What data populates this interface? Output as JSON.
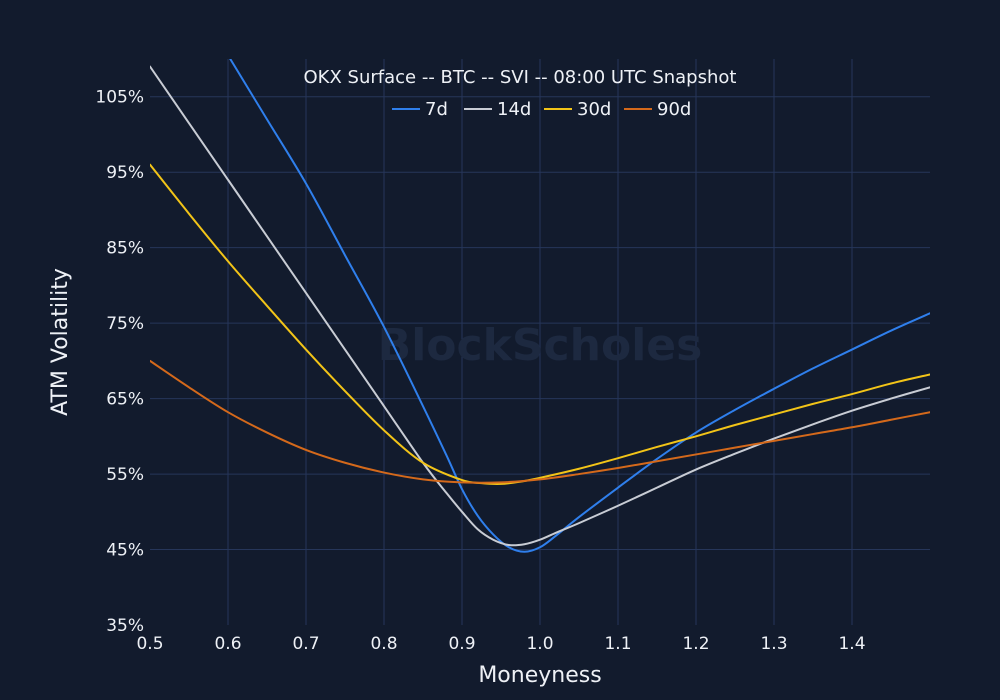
{
  "chart_data": {
    "type": "line",
    "title": "OKX Surface -- BTC -- SVI -- 08:00 UTC Snapshot",
    "xlabel": "Moneyness",
    "ylabel": "ATM Volatility",
    "watermark": "BlockScholes",
    "xlim": [
      0.5,
      1.5
    ],
    "ylim": [
      35,
      110
    ],
    "x_ticks": [
      0.5,
      0.6,
      0.7,
      0.8,
      0.9,
      1.0,
      1.1,
      1.2,
      1.3,
      1.4
    ],
    "x_tick_labels": [
      "0.5",
      "0.6",
      "0.7",
      "0.8",
      "0.9",
      "1.0",
      "1.1",
      "1.2",
      "1.3",
      "1.4"
    ],
    "y_ticks": [
      35,
      45,
      55,
      65,
      75,
      85,
      95,
      105
    ],
    "y_tick_labels": [
      "35%",
      "45%",
      "55%",
      "65%",
      "75%",
      "85%",
      "95%",
      "105%"
    ],
    "grid": true,
    "legend_position": "top-center",
    "background_color": "#121b2d",
    "grid_color": "#26365a",
    "series": [
      {
        "name": "7d",
        "color": "#2f7fec",
        "x": [
          0.6,
          0.65,
          0.7,
          0.75,
          0.8,
          0.85,
          0.88,
          0.9,
          0.92,
          0.94,
          0.96,
          0.98,
          1.0,
          1.02,
          1.05,
          1.1,
          1.15,
          1.2,
          1.25,
          1.3,
          1.35,
          1.4,
          1.45,
          1.5
        ],
        "y": [
          110.5,
          102,
          93.5,
          84,
          74.5,
          64,
          57.5,
          53,
          49.5,
          47,
          45.3,
          44.7,
          45.3,
          46.8,
          49.3,
          53.2,
          57,
          60.5,
          63.5,
          66.3,
          69,
          71.5,
          74,
          76.3
        ]
      },
      {
        "name": "14d",
        "color": "#c8ccd4",
        "x": [
          0.5,
          0.55,
          0.6,
          0.65,
          0.7,
          0.75,
          0.8,
          0.85,
          0.88,
          0.9,
          0.92,
          0.94,
          0.96,
          0.98,
          1.0,
          1.02,
          1.05,
          1.1,
          1.15,
          1.2,
          1.25,
          1.3,
          1.35,
          1.4,
          1.45,
          1.5
        ],
        "y": [
          109,
          101.5,
          94,
          86.5,
          79,
          71.5,
          64,
          56.5,
          52.5,
          50,
          47.7,
          46.3,
          45.6,
          45.7,
          46.3,
          47.2,
          48.5,
          50.8,
          53.2,
          55.6,
          57.7,
          59.7,
          61.6,
          63.4,
          65,
          66.5
        ]
      },
      {
        "name": "30d",
        "color": "#f2c418",
        "x": [
          0.5,
          0.55,
          0.6,
          0.65,
          0.7,
          0.75,
          0.8,
          0.85,
          0.9,
          0.925,
          0.95,
          0.975,
          1.0,
          1.05,
          1.1,
          1.15,
          1.2,
          1.25,
          1.3,
          1.35,
          1.4,
          1.45,
          1.5
        ],
        "y": [
          96,
          89.5,
          83.2,
          77.3,
          71.5,
          66,
          60.8,
          56.5,
          54.2,
          53.8,
          53.7,
          54,
          54.5,
          55.7,
          57.1,
          58.6,
          60,
          61.5,
          62.9,
          64.3,
          65.6,
          67,
          68.2
        ]
      },
      {
        "name": "90d",
        "color": "#d4691b",
        "x": [
          0.5,
          0.55,
          0.6,
          0.65,
          0.7,
          0.75,
          0.8,
          0.85,
          0.9,
          0.95,
          1.0,
          1.05,
          1.1,
          1.15,
          1.2,
          1.25,
          1.3,
          1.35,
          1.4,
          1.45,
          1.5
        ],
        "y": [
          70,
          66.5,
          63.2,
          60.5,
          58.2,
          56.5,
          55.2,
          54.3,
          53.9,
          53.9,
          54.3,
          55,
          55.8,
          56.7,
          57.6,
          58.5,
          59.4,
          60.3,
          61.2,
          62.2,
          63.2
        ]
      }
    ]
  }
}
